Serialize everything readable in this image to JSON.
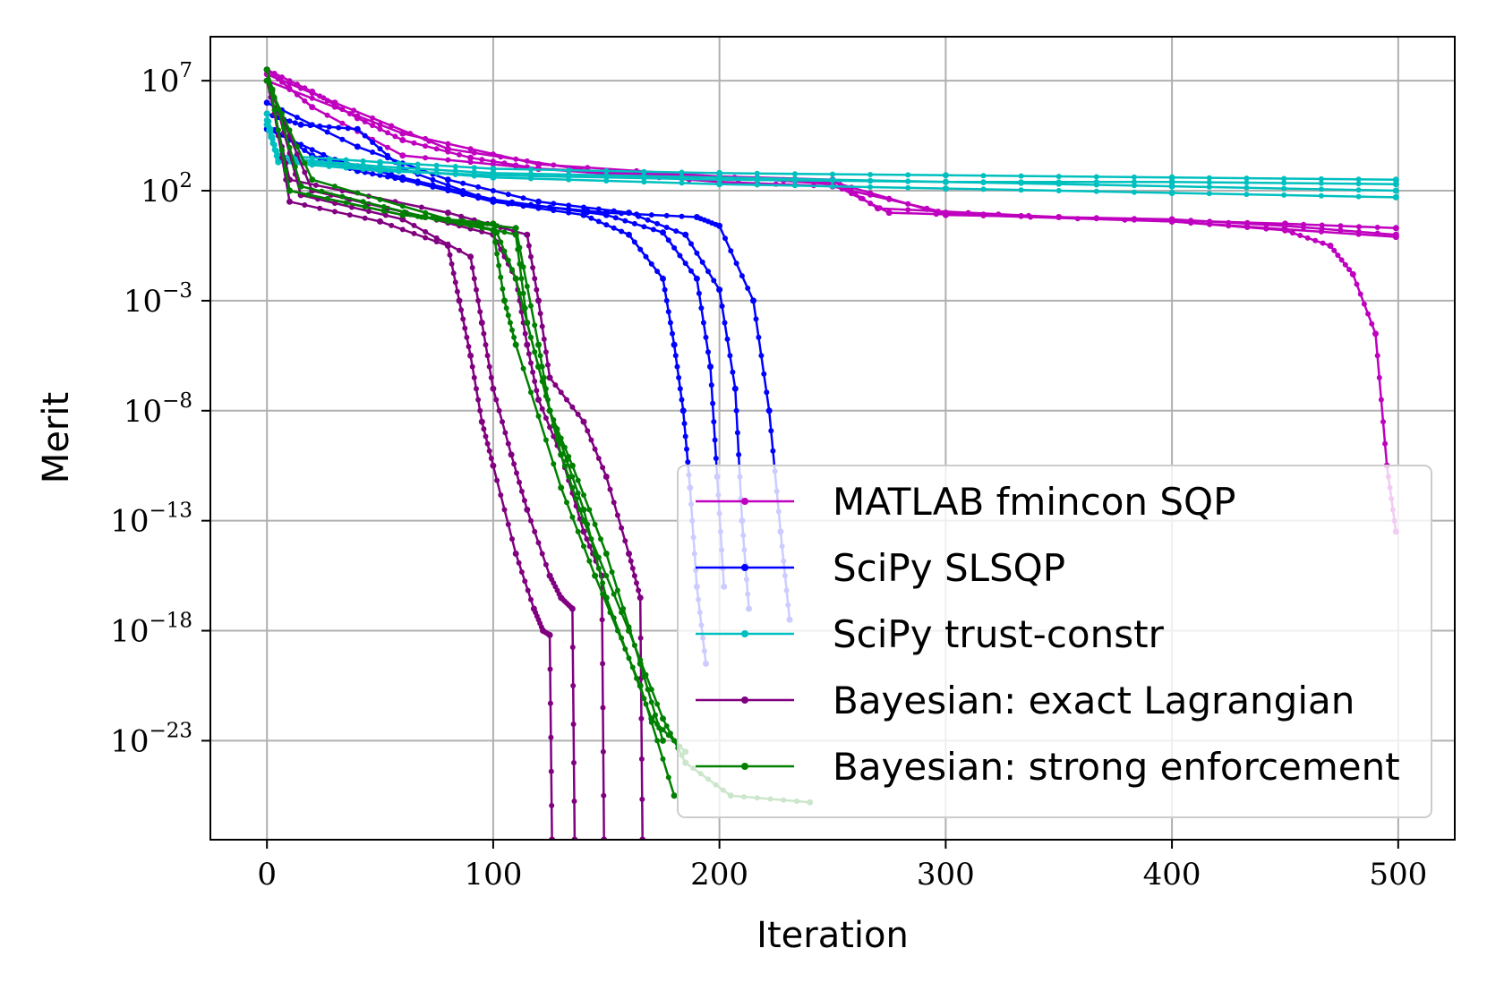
{
  "chart_data": {
    "type": "line",
    "xlabel": "Iteration",
    "ylabel": "Merit",
    "yscale": "log",
    "xlim": [
      -25,
      525
    ],
    "ylim_exp": [
      -27.5,
      9
    ],
    "grid": true,
    "legend_position": "bottom-right",
    "x_ticks": [
      {
        "value": 0,
        "label": "0"
      },
      {
        "value": 100,
        "label": "100"
      },
      {
        "value": 200,
        "label": "200"
      },
      {
        "value": 300,
        "label": "300"
      },
      {
        "value": 400,
        "label": "400"
      },
      {
        "value": 500,
        "label": "500"
      }
    ],
    "y_ticks": [
      {
        "exp": 7,
        "base": "10",
        "sup": "7"
      },
      {
        "exp": 2,
        "base": "10",
        "sup": "2"
      },
      {
        "exp": -3,
        "base": "10",
        "sup": "−3"
      },
      {
        "exp": -8,
        "base": "10",
        "sup": "−8"
      },
      {
        "exp": -13,
        "base": "10",
        "sup": "−13"
      },
      {
        "exp": -18,
        "base": "10",
        "sup": "−18"
      },
      {
        "exp": -23,
        "base": "10",
        "sup": "−23"
      }
    ],
    "series": [
      {
        "name": "MATLAB fmincon SQP",
        "color": "#bf00bf",
        "runs": [
          {
            "x": [
              0,
              20,
              40,
              60,
              90,
              120,
              200,
              250,
              300,
              400,
              450,
              470,
              480,
              490,
              495,
              499
            ],
            "log10_y": [
              7.5,
              6.5,
              5.3,
              4.3,
              3.5,
              3,
              2.4,
              2.2,
              1.0,
              0.6,
              0.2,
              -0.5,
              -1.8,
              -4.5,
              -10.5,
              -13.5
            ]
          },
          {
            "x": [
              0,
              20,
              60,
              120,
              250,
              300,
              400,
              450,
              499
            ],
            "log10_y": [
              7.5,
              5.8,
              3.6,
              3.0,
              2.4,
              0.9,
              0.7,
              0.4,
              0.0
            ]
          },
          {
            "x": [
              0,
              30,
              80,
              150,
              250,
              270,
              350,
              450,
              499
            ],
            "log10_y": [
              7.3,
              6.0,
              3.9,
              2.8,
              2.5,
              1.2,
              0.8,
              0.5,
              0.3
            ]
          },
          {
            "x": [
              0,
              60,
              120,
              250,
              275,
              400,
              499
            ],
            "log10_y": [
              7.0,
              4.6,
              3.2,
              2.3,
              1.0,
              0.6,
              -0.1
            ]
          }
        ]
      },
      {
        "name": "SciPy SLSQP",
        "color": "#0000ff",
        "runs": [
          {
            "x": [
              0,
              20,
              40,
              60,
              100,
              140,
              160,
              175,
              180,
              184,
              187,
              190,
              194
            ],
            "log10_y": [
              5.0,
              3.6,
              2.9,
              2.5,
              1.5,
              0.9,
              0.0,
              -2.0,
              -5.0,
              -8.0,
              -11.5,
              -16.0,
              -19.5
            ]
          },
          {
            "x": [
              0,
              30,
              60,
              100,
              150,
              175,
              190,
              196,
              199,
              202
            ],
            "log10_y": [
              4.8,
              3.4,
              2.6,
              1.6,
              0.9,
              0.1,
              -2.0,
              -6.0,
              -11.0,
              -16.0
            ]
          },
          {
            "x": [
              0,
              40,
              80,
              120,
              160,
              185,
              200,
              207,
              210,
              213
            ],
            "log10_y": [
              6.0,
              4.0,
              2.5,
              1.5,
              1.0,
              0.0,
              -2.5,
              -7.0,
              -13.0,
              -17.0
            ]
          },
          {
            "x": [
              0,
              15,
              40,
              60,
              100,
              150,
              190,
              200,
              215,
              222,
              227,
              231
            ],
            "log10_y": [
              5.5,
              5.0,
              4.8,
              3.0,
              1.5,
              1.0,
              0.8,
              0.4,
              -3.0,
              -8.0,
              -13.5,
              -17.5
            ]
          }
        ]
      },
      {
        "name": "SciPy trust-constr",
        "color": "#00bfbf",
        "runs": [
          {
            "x": [
              0,
              5,
              50,
              100,
              200,
              300,
              400,
              499
            ],
            "log10_y": [
              5.0,
              3.6,
              3.3,
              3.0,
              2.8,
              2.7,
              2.6,
              2.5
            ]
          },
          {
            "x": [
              0,
              5,
              50,
              100,
              200,
              300,
              400,
              499
            ],
            "log10_y": [
              5.2,
              3.5,
              3.1,
              2.8,
              2.6,
              2.4,
              2.2,
              2.0
            ]
          },
          {
            "x": [
              0,
              5,
              50,
              100,
              200,
              300,
              400,
              499
            ],
            "log10_y": [
              5.5,
              3.4,
              3.0,
              2.6,
              2.3,
              2.1,
              1.9,
              1.7
            ]
          },
          {
            "x": [
              0,
              5,
              50,
              100,
              200,
              300,
              400,
              499
            ],
            "log10_y": [
              5.0,
              3.3,
              2.9,
              2.7,
              2.5,
              2.4,
              2.4,
              2.3
            ]
          }
        ]
      },
      {
        "name": "Bayesian: exact Lagrangian",
        "color": "#800080",
        "runs": [
          {
            "x": [
              0,
              10,
              50,
              80,
              85,
              90,
              95,
              100,
              110,
              118,
              122,
              125,
              126
            ],
            "log10_y": [
              7.5,
              1.5,
              0.6,
              -0.5,
              -3.0,
              -5.5,
              -8.5,
              -10.5,
              -14.5,
              -17.0,
              -18.0,
              -18.2,
              -27.5
            ]
          },
          {
            "x": [
              0,
              15,
              60,
              90,
              95,
              100,
              108,
              115,
              125,
              130,
              135,
              136
            ],
            "log10_y": [
              7.5,
              1.8,
              0.7,
              -1.0,
              -4.0,
              -7.0,
              -10.0,
              -12.5,
              -15.5,
              -16.5,
              -17.0,
              -27.5
            ]
          },
          {
            "x": [
              0,
              20,
              70,
              100,
              110,
              115,
              120,
              130,
              140,
              148,
              149
            ],
            "log10_y": [
              7.0,
              2.0,
              0.8,
              0.0,
              -2.0,
              -5.0,
              -7.5,
              -10.0,
              -13.5,
              -15.5,
              -27.5
            ]
          },
          {
            "x": [
              0,
              10,
              80,
              115,
              120,
              125,
              140,
              150,
              160,
              165,
              166
            ],
            "log10_y": [
              7.0,
              2.5,
              1.0,
              0.0,
              -3.0,
              -6.5,
              -8.5,
              -11.0,
              -14.5,
              -16.5,
              -27.5
            ]
          }
        ]
      },
      {
        "name": "Bayesian: strong enforcement",
        "color": "#008000",
        "runs": [
          {
            "x": [
              0,
              10,
              60,
              100,
              110,
              120,
              130,
              140,
              160,
              175,
              185,
              205,
              240
            ],
            "log10_y": [
              7.5,
              2.0,
              0.9,
              0.5,
              -2.0,
              -6.0,
              -10.0,
              -13.0,
              -18.0,
              -22.0,
              -24.0,
              -25.5,
              -25.8
            ]
          },
          {
            "x": [
              0,
              15,
              70,
              100,
              105,
              110,
              130,
              145,
              165,
              180
            ],
            "log10_y": [
              7.5,
              2.2,
              0.8,
              0.2,
              -3.0,
              -5.0,
              -11.5,
              -15.5,
              -20.5,
              -25.5
            ]
          },
          {
            "x": [
              0,
              20,
              80,
              110,
              115,
              125,
              140,
              150,
              170,
              185
            ],
            "log10_y": [
              7.0,
              2.5,
              0.7,
              0.0,
              -4.0,
              -8.0,
              -12.5,
              -16.5,
              -22.0,
              -23.5
            ]
          },
          {
            "x": [
              0,
              10,
              60,
              110,
              120,
              125,
              135,
              150,
              165,
              175
            ],
            "log10_y": [
              7.5,
              2.0,
              0.9,
              0.3,
              -5.0,
              -8.0,
              -10.5,
              -14.5,
              -19.5,
              -23.0
            ]
          }
        ]
      }
    ]
  }
}
